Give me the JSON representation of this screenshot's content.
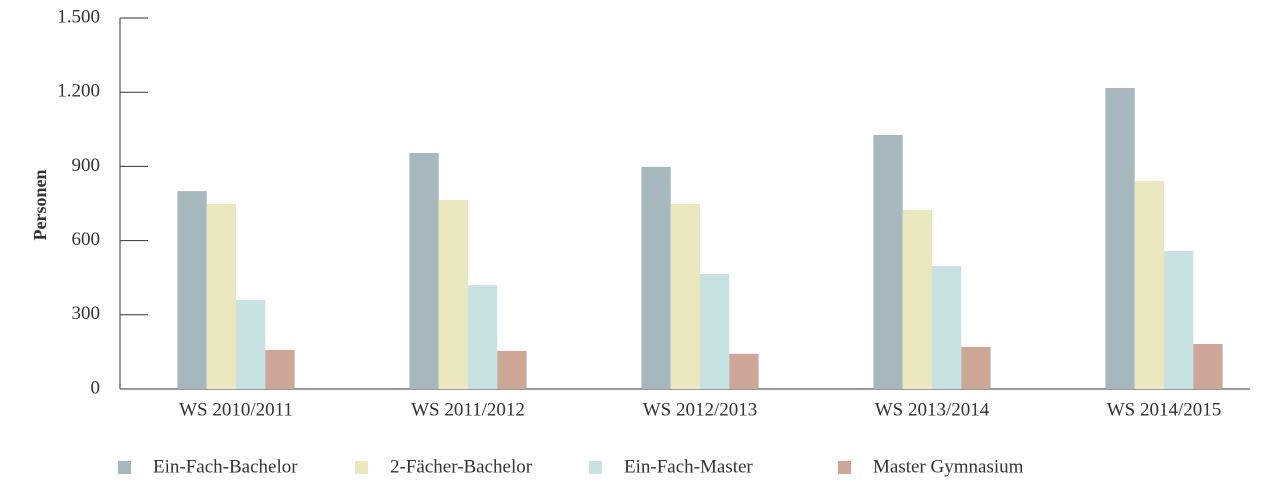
{
  "chart_data": {
    "type": "bar",
    "y_label": "Personen",
    "categories": [
      "WS 2010/2011",
      "WS 2011/2012",
      "WS 2012/2013",
      "WS 2013/2014",
      "WS 2014/2015"
    ],
    "series": [
      {
        "name": "Ein-Fach-Bachelor",
        "color": "#a6b7bd",
        "values": [
          800,
          954,
          898,
          1027,
          1217
        ]
      },
      {
        "name": "2-Fächer-Bachelor",
        "color": "#ebe8bf",
        "values": [
          748,
          764,
          748,
          724,
          841
        ]
      },
      {
        "name": "Ein-Fach-Master",
        "color": "#c8e2e3",
        "values": [
          360,
          420,
          465,
          497,
          558
        ]
      },
      {
        "name": "Master Gymnasium",
        "color": "#cda697",
        "values": [
          158,
          154,
          142,
          170,
          182
        ]
      }
    ],
    "ylim": [
      0,
      1500
    ],
    "yticks": [
      0,
      300,
      600,
      900,
      {
        "value": 1200,
        "label": "1.200"
      },
      {
        "value": 1500,
        "label": "1.500"
      }
    ],
    "legend": "bottom"
  }
}
